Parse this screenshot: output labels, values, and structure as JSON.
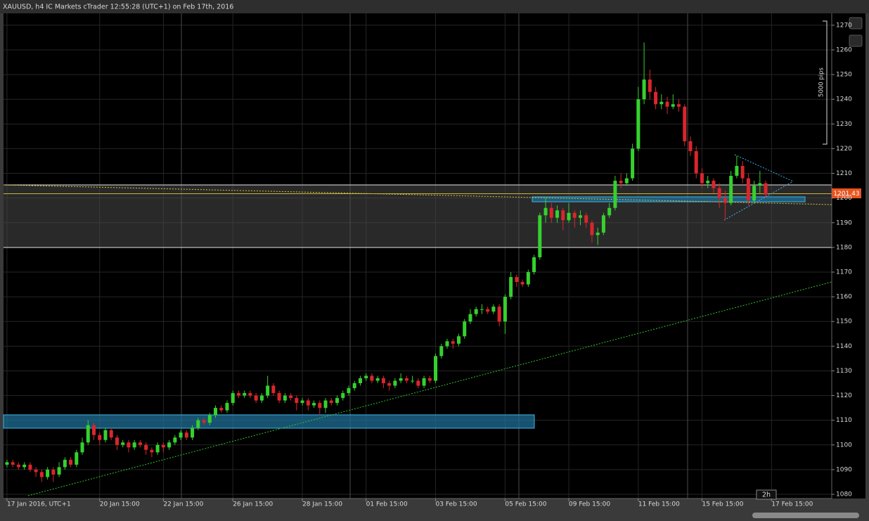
{
  "chart_data": {
    "type": "candlestick",
    "title": "XAUUSD, h4 IC Markets cTrader 12:55:28 (UTC+1) on Feb 17th, 2016",
    "up_color": "#35d12e",
    "down_color": "#d9262c",
    "ohlc": [
      [
        1092,
        1094,
        1091,
        1093
      ],
      [
        1093,
        1094,
        1091,
        1092
      ],
      [
        1092,
        1093,
        1090,
        1091
      ],
      [
        1091,
        1093,
        1090,
        1092
      ],
      [
        1092,
        1093,
        1089,
        1090
      ],
      [
        1090,
        1091,
        1087,
        1089
      ],
      [
        1089,
        1090,
        1085,
        1087
      ],
      [
        1087,
        1091,
        1086,
        1090
      ],
      [
        1090,
        1091,
        1085,
        1088
      ],
      [
        1088,
        1093,
        1087,
        1091
      ],
      [
        1091,
        1095,
        1090,
        1094
      ],
      [
        1094,
        1095,
        1091,
        1092
      ],
      [
        1092,
        1098,
        1091,
        1097
      ],
      [
        1097,
        1103,
        1096,
        1101
      ],
      [
        1101,
        1110,
        1100,
        1108
      ],
      [
        1108,
        1109,
        1102,
        1104
      ],
      [
        1104,
        1105,
        1100,
        1102
      ],
      [
        1102,
        1107,
        1101,
        1106
      ],
      [
        1106,
        1107,
        1102,
        1103
      ],
      [
        1103,
        1104,
        1098,
        1100
      ],
      [
        1100,
        1102,
        1099,
        1101
      ],
      [
        1101,
        1102,
        1097,
        1099
      ],
      [
        1099,
        1102,
        1098,
        1101
      ],
      [
        1101,
        1102,
        1099,
        1100
      ],
      [
        1100,
        1101,
        1096,
        1098
      ],
      [
        1098,
        1099,
        1095,
        1097
      ],
      [
        1097,
        1101,
        1096,
        1100
      ],
      [
        1100,
        1101,
        1097,
        1099
      ],
      [
        1099,
        1102,
        1098,
        1101
      ],
      [
        1101,
        1104,
        1100,
        1103
      ],
      [
        1103,
        1106,
        1102,
        1105
      ],
      [
        1105,
        1106,
        1102,
        1103
      ],
      [
        1103,
        1108,
        1102,
        1107
      ],
      [
        1107,
        1111,
        1106,
        1110
      ],
      [
        1110,
        1111,
        1108,
        1109
      ],
      [
        1109,
        1113,
        1108,
        1112
      ],
      [
        1112,
        1116,
        1111,
        1115
      ],
      [
        1115,
        1116,
        1113,
        1114
      ],
      [
        1114,
        1118,
        1113,
        1117
      ],
      [
        1117,
        1122,
        1116,
        1121
      ],
      [
        1121,
        1122,
        1119,
        1120
      ],
      [
        1120,
        1122,
        1119,
        1121
      ],
      [
        1121,
        1122,
        1119,
        1120
      ],
      [
        1120,
        1121,
        1117,
        1118
      ],
      [
        1118,
        1121,
        1117,
        1120
      ],
      [
        1120,
        1128,
        1119,
        1124
      ],
      [
        1124,
        1125,
        1120,
        1121
      ],
      [
        1121,
        1122,
        1117,
        1118
      ],
      [
        1118,
        1121,
        1117,
        1120
      ],
      [
        1120,
        1121,
        1118,
        1119
      ],
      [
        1119,
        1120,
        1114,
        1117
      ],
      [
        1117,
        1119,
        1116,
        1118
      ],
      [
        1118,
        1119,
        1114,
        1116
      ],
      [
        1116,
        1118,
        1115,
        1117
      ],
      [
        1117,
        1118,
        1112,
        1115
      ],
      [
        1115,
        1119,
        1113,
        1118
      ],
      [
        1118,
        1119,
        1116,
        1117
      ],
      [
        1117,
        1120,
        1116,
        1119
      ],
      [
        1119,
        1122,
        1118,
        1121
      ],
      [
        1121,
        1124,
        1120,
        1123
      ],
      [
        1123,
        1126,
        1122,
        1125
      ],
      [
        1125,
        1128,
        1124,
        1127
      ],
      [
        1127,
        1129,
        1126,
        1128
      ],
      [
        1128,
        1129,
        1125,
        1126
      ],
      [
        1126,
        1128,
        1125,
        1127
      ],
      [
        1127,
        1128,
        1123,
        1125
      ],
      [
        1125,
        1126,
        1122,
        1124
      ],
      [
        1124,
        1127,
        1123,
        1126
      ],
      [
        1126,
        1129,
        1125,
        1127
      ],
      [
        1127,
        1128,
        1125,
        1126
      ],
      [
        1126,
        1128,
        1125,
        1126
      ],
      [
        1126,
        1127,
        1123,
        1124
      ],
      [
        1124,
        1128,
        1123,
        1127
      ],
      [
        1127,
        1128,
        1125,
        1126
      ],
      [
        1126,
        1137,
        1125,
        1136
      ],
      [
        1136,
        1141,
        1135,
        1140
      ],
      [
        1140,
        1143,
        1139,
        1142
      ],
      [
        1142,
        1143,
        1139,
        1141
      ],
      [
        1141,
        1145,
        1140,
        1144
      ],
      [
        1144,
        1151,
        1143,
        1150
      ],
      [
        1150,
        1155,
        1149,
        1153
      ],
      [
        1153,
        1156,
        1152,
        1155
      ],
      [
        1155,
        1157,
        1153,
        1155
      ],
      [
        1155,
        1156,
        1153,
        1154
      ],
      [
        1154,
        1157,
        1153,
        1156
      ],
      [
        1156,
        1157,
        1148,
        1150
      ],
      [
        1150,
        1161,
        1145,
        1160
      ],
      [
        1160,
        1170,
        1159,
        1168
      ],
      [
        1168,
        1169,
        1164,
        1166
      ],
      [
        1166,
        1167,
        1164,
        1165
      ],
      [
        1165,
        1171,
        1164,
        1170
      ],
      [
        1170,
        1177,
        1169,
        1176
      ],
      [
        1176,
        1194,
        1175,
        1193
      ],
      [
        1193,
        1200,
        1190,
        1196
      ],
      [
        1196,
        1198,
        1190,
        1192
      ],
      [
        1192,
        1197,
        1190,
        1195
      ],
      [
        1195,
        1196,
        1187,
        1191
      ],
      [
        1191,
        1198,
        1190,
        1194
      ],
      [
        1194,
        1195,
        1188,
        1192
      ],
      [
        1192,
        1195,
        1189,
        1193
      ],
      [
        1193,
        1194,
        1188,
        1190
      ],
      [
        1190,
        1191,
        1182,
        1185
      ],
      [
        1185,
        1188,
        1181,
        1186
      ],
      [
        1186,
        1194,
        1185,
        1193
      ],
      [
        1193,
        1198,
        1192,
        1196
      ],
      [
        1196,
        1209,
        1195,
        1207
      ],
      [
        1207,
        1210,
        1204,
        1206
      ],
      [
        1206,
        1210,
        1205,
        1208
      ],
      [
        1208,
        1222,
        1207,
        1220
      ],
      [
        1220,
        1245,
        1219,
        1240
      ],
      [
        1240,
        1263,
        1238,
        1248
      ],
      [
        1248,
        1252,
        1240,
        1243
      ],
      [
        1243,
        1245,
        1236,
        1238
      ],
      [
        1238,
        1242,
        1236,
        1239
      ],
      [
        1239,
        1241,
        1234,
        1237
      ],
      [
        1237,
        1242,
        1236,
        1238
      ],
      [
        1238,
        1240,
        1235,
        1237
      ],
      [
        1237,
        1238,
        1221,
        1223
      ],
      [
        1223,
        1225,
        1217,
        1219
      ],
      [
        1219,
        1221,
        1208,
        1210
      ],
      [
        1210,
        1212,
        1204,
        1206
      ],
      [
        1206,
        1209,
        1204,
        1207
      ],
      [
        1207,
        1208,
        1202,
        1204
      ],
      [
        1204,
        1206,
        1196,
        1200
      ],
      [
        1200,
        1203,
        1191,
        1198
      ],
      [
        1198,
        1211,
        1197,
        1209
      ],
      [
        1209,
        1217,
        1208,
        1213
      ],
      [
        1213,
        1215,
        1206,
        1208
      ],
      [
        1208,
        1210,
        1197,
        1199
      ],
      [
        1199,
        1207,
        1198,
        1205
      ],
      [
        1205,
        1211,
        1202,
        1206
      ],
      [
        1206,
        1207,
        1200,
        1201.43
      ]
    ],
    "last_price": 1201.43,
    "xlim": [
      -0.6,
      142.4
    ],
    "xticks": [
      {
        "value": 0,
        "label": "17 Jan 2016, UTC+1"
      },
      {
        "value": 16,
        "label": "20 Jan 15:00"
      },
      {
        "value": 27,
        "label": "22 Jan 15:00"
      },
      {
        "value": 39,
        "label": "26 Jan 15:00"
      },
      {
        "value": 51,
        "label": "28 Jan 15:00"
      },
      {
        "value": 62,
        "label": "01 Feb 15:00"
      },
      {
        "value": 74,
        "label": "03 Feb 15:00"
      },
      {
        "value": 86,
        "label": "05 Feb 15:00"
      },
      {
        "value": 97,
        "label": "09 Feb 15:00"
      },
      {
        "value": 109,
        "label": "11 Feb 15:00"
      },
      {
        "value": 120,
        "label": "15 Feb 15:00"
      },
      {
        "value": 132,
        "label": "17 Feb 15:00"
      }
    ],
    "ylim": [
      1078.3,
      1274.8
    ],
    "yticks": [
      1080,
      1090,
      1100,
      1110,
      1120,
      1130,
      1140,
      1150,
      1160,
      1170,
      1180,
      1190,
      1200,
      1210,
      1220,
      1230,
      1240,
      1250,
      1260,
      1270
    ],
    "grid": true,
    "measure_label": "5000 pips",
    "timeframe_label": "2h"
  }
}
